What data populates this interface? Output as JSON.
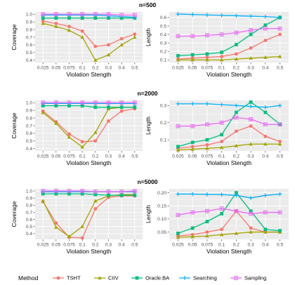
{
  "colors": {
    "TSHT": "#F8766D",
    "CIIV": "#A3A500",
    "Oracle.BA": "#00BF7D",
    "Searching": "#00B0F6",
    "Sampling": "#E76BF3",
    "panel_bg": "#EBEBEB",
    "grid": "#FFFFFF"
  },
  "legend": {
    "title": "Method",
    "position": "bottom",
    "items": [
      {
        "name": "TSHT",
        "marker": "circle"
      },
      {
        "name": "CIIV",
        "marker": "triangle"
      },
      {
        "name": "Oracle.BA",
        "marker": "square"
      },
      {
        "name": "Searching",
        "marker": "plus"
      },
      {
        "name": "Sampling",
        "marker": "boxplus"
      }
    ]
  },
  "chart_data": [
    {
      "type": "line",
      "title": "",
      "xlabel": "Violation Stength",
      "ylabel": "Coverage",
      "categories": [
        "0.025",
        "0.05",
        "0.075",
        "0.1",
        "0.2",
        "0.3",
        "0.4",
        "0.5"
      ],
      "ylim": [
        0.37,
        1.03
      ],
      "yticks": [
        0.4,
        0.5,
        0.6,
        0.7,
        0.8,
        0.9,
        1.0
      ],
      "ytick_labels": [
        "0.4",
        "0.5",
        "0.6",
        "0.7",
        "0.8",
        "0.9",
        "1.0"
      ],
      "series": [
        {
          "name": "TSHT",
          "values": [
            0.91,
            0.88,
            0.84,
            0.78,
            0.58,
            0.6,
            0.68,
            0.74
          ]
        },
        {
          "name": "CIIV",
          "values": [
            0.88,
            0.84,
            0.79,
            0.7,
            0.4,
            0.47,
            0.6,
            0.7
          ]
        },
        {
          "name": "Oracle.BA",
          "values": [
            0.95,
            0.95,
            0.95,
            0.95,
            0.95,
            0.95,
            0.95,
            0.95
          ]
        },
        {
          "name": "Searching",
          "values": [
            0.99,
            0.99,
            0.99,
            0.99,
            0.99,
            0.98,
            0.97,
            0.96
          ]
        },
        {
          "name": "Sampling",
          "values": [
            1.0,
            1.0,
            1.0,
            1.0,
            1.0,
            1.0,
            0.99,
            0.99
          ]
        }
      ]
    },
    {
      "type": "line",
      "title": "n=500",
      "xlabel": "Violation Stength",
      "ylabel": "Length",
      "categories": [
        "0.025",
        "0.05",
        "0.075",
        "0.1",
        "0.2",
        "0.3",
        "0.4",
        "0.5"
      ],
      "ylim": [
        0.07,
        0.665
      ],
      "yticks": [
        0.1,
        0.2,
        0.3,
        0.4,
        0.5,
        0.6
      ],
      "ytick_labels": [
        "0.1",
        "0.2",
        "0.3",
        "0.4",
        "0.5",
        "0.6"
      ],
      "series": [
        {
          "name": "TSHT",
          "values": [
            0.11,
            0.12,
            0.13,
            0.14,
            0.17,
            0.24,
            0.33,
            0.4
          ]
        },
        {
          "name": "CIIV",
          "values": [
            0.1,
            0.1,
            0.1,
            0.1,
            0.11,
            0.12,
            0.13,
            0.14
          ]
        },
        {
          "name": "Oracle.BA",
          "values": [
            0.15,
            0.16,
            0.17,
            0.19,
            0.28,
            0.4,
            0.51,
            0.6
          ]
        },
        {
          "name": "Searching",
          "values": [
            0.64,
            0.635,
            0.63,
            0.625,
            0.62,
            0.615,
            0.61,
            0.6
          ]
        },
        {
          "name": "Sampling",
          "values": [
            0.38,
            0.38,
            0.39,
            0.4,
            0.42,
            0.45,
            0.47,
            0.47
          ]
        }
      ]
    },
    {
      "type": "line",
      "title": "",
      "xlabel": "Violation Stength",
      "ylabel": "Coverage",
      "categories": [
        "0.025",
        "0.05",
        "0.075",
        "0.1",
        "0.2",
        "0.3",
        "0.4",
        "0.5"
      ],
      "ylim": [
        0.37,
        1.03
      ],
      "yticks": [
        0.4,
        0.5,
        0.6,
        0.7,
        0.8,
        0.9,
        1.0
      ],
      "ytick_labels": [
        "0.4",
        "0.5",
        "0.6",
        "0.7",
        "0.8",
        "0.9",
        "1.0"
      ],
      "series": [
        {
          "name": "TSHT",
          "values": [
            0.89,
            0.75,
            0.59,
            0.49,
            0.5,
            0.76,
            0.89,
            0.92
          ]
        },
        {
          "name": "CIIV",
          "values": [
            0.87,
            0.73,
            0.55,
            0.42,
            0.61,
            0.92,
            0.94,
            0.94
          ]
        },
        {
          "name": "Oracle.BA",
          "values": [
            0.96,
            0.96,
            0.96,
            0.96,
            0.94,
            0.94,
            0.94,
            0.94
          ]
        },
        {
          "name": "Searching",
          "values": [
            0.99,
            0.99,
            0.99,
            0.99,
            0.99,
            0.99,
            0.99,
            0.99
          ]
        },
        {
          "name": "Sampling",
          "values": [
            1.0,
            1.0,
            1.0,
            1.0,
            1.0,
            1.0,
            1.0,
            1.0
          ]
        }
      ]
    },
    {
      "type": "line",
      "title": "n=2000",
      "xlabel": "Violation Stength",
      "ylabel": "Length",
      "categories": [
        "0.025",
        "0.05",
        "0.075",
        "0.1",
        "0.2",
        "0.3",
        "0.4",
        "0.5"
      ],
      "ylim": [
        0.035,
        0.33
      ],
      "yticks": [
        0.1,
        0.2,
        0.3
      ],
      "ytick_labels": [
        "0.1",
        "0.2",
        "0.3"
      ],
      "series": [
        {
          "name": "TSHT",
          "values": [
            0.05,
            0.06,
            0.07,
            0.09,
            0.15,
            0.18,
            0.12,
            0.09
          ]
        },
        {
          "name": "CIIV",
          "values": [
            0.04,
            0.045,
            0.05,
            0.055,
            0.065,
            0.075,
            0.075,
            0.075
          ]
        },
        {
          "name": "Oracle.BA",
          "values": [
            0.06,
            0.085,
            0.1,
            0.13,
            0.26,
            0.32,
            0.26,
            0.19
          ]
        },
        {
          "name": "Searching",
          "values": [
            0.31,
            0.31,
            0.31,
            0.305,
            0.3,
            0.295,
            0.29,
            0.3
          ]
        },
        {
          "name": "Sampling",
          "values": [
            0.18,
            0.18,
            0.19,
            0.2,
            0.23,
            0.22,
            0.19,
            0.19
          ]
        }
      ]
    },
    {
      "type": "line",
      "title": "",
      "xlabel": "Violation Stength",
      "ylabel": "Coverage",
      "categories": [
        "0.025",
        "0.05",
        "0.075",
        "0.1",
        "0.2",
        "0.3",
        "0.4",
        "0.5"
      ],
      "ylim": [
        0.32,
        1.03
      ],
      "yticks": [
        0.4,
        0.5,
        0.6,
        0.7,
        0.8,
        0.9,
        1.0
      ],
      "ytick_labels": [
        "0.4",
        "0.5",
        "0.6",
        "0.7",
        "0.8",
        "0.9",
        "1.0"
      ],
      "series": [
        {
          "name": "TSHT",
          "values": [
            0.85,
            0.55,
            0.35,
            0.34,
            0.75,
            0.91,
            0.93,
            0.93
          ]
        },
        {
          "name": "CIIV",
          "values": [
            0.86,
            0.49,
            0.36,
            0.5,
            0.86,
            0.93,
            0.95,
            0.95
          ]
        },
        {
          "name": "Oracle.BA",
          "values": [
            0.96,
            0.96,
            0.96,
            0.96,
            0.95,
            0.94,
            0.94,
            0.94
          ]
        },
        {
          "name": "Searching",
          "values": [
            0.99,
            0.99,
            0.99,
            0.99,
            0.99,
            0.99,
            0.99,
            0.99
          ]
        },
        {
          "name": "Sampling",
          "values": [
            1.0,
            1.0,
            1.0,
            1.0,
            0.99,
            0.99,
            0.99,
            1.0
          ]
        }
      ]
    },
    {
      "type": "line",
      "title": "n=5000",
      "xlabel": "Violation Stength",
      "ylabel": "Length",
      "categories": [
        "0.025",
        "0.05",
        "0.075",
        "0.1",
        "0.2",
        "0.3",
        "0.4",
        "0.5"
      ],
      "ylim": [
        0.022,
        0.215
      ],
      "yticks": [
        0.05,
        0.1,
        0.15,
        0.2
      ],
      "ytick_labels": [
        "0.05",
        "0.10",
        "0.15",
        "0.20"
      ],
      "series": [
        {
          "name": "TSHT",
          "values": [
            0.035,
            0.04,
            0.05,
            0.06,
            0.13,
            0.065,
            0.05,
            0.05
          ]
        },
        {
          "name": "CIIV",
          "values": [
            0.03,
            0.032,
            0.035,
            0.04,
            0.045,
            0.05,
            0.05,
            0.05
          ]
        },
        {
          "name": "Oracle.BA",
          "values": [
            0.045,
            0.065,
            0.09,
            0.12,
            0.2,
            0.13,
            0.06,
            0.055
          ]
        },
        {
          "name": "Searching",
          "values": [
            0.195,
            0.195,
            0.194,
            0.193,
            0.19,
            0.18,
            0.19,
            0.195
          ]
        },
        {
          "name": "Sampling",
          "values": [
            0.115,
            0.125,
            0.13,
            0.14,
            0.13,
            0.12,
            0.125,
            0.125
          ]
        }
      ]
    }
  ]
}
